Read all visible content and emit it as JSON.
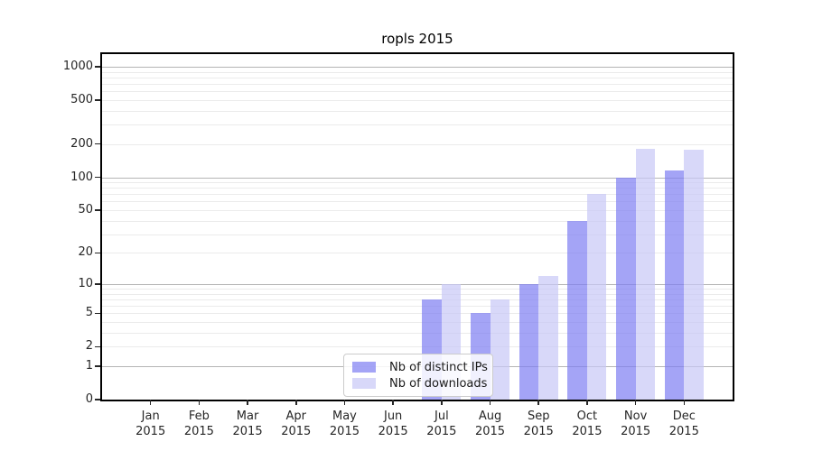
{
  "title": "ropls 2015",
  "colors": {
    "ips_bar": "rgba(125,125,242,0.7)",
    "downloads_bar": "rgba(200,200,246,0.7)",
    "grid_major": "#b4b4b4",
    "grid_minor": "#ebebeb",
    "axis": "#000000",
    "text": "#262626"
  },
  "legend": {
    "items": [
      {
        "label": "Nb of distinct IPs"
      },
      {
        "label": "Nb of downloads"
      }
    ]
  },
  "chart_data": {
    "type": "bar",
    "title": "ropls 2015",
    "categories": [
      "Jan 2015",
      "Feb 2015",
      "Mar 2015",
      "Apr 2015",
      "May 2015",
      "Jun 2015",
      "Jul 2015",
      "Aug 2015",
      "Sep 2015",
      "Oct 2015",
      "Nov 2015",
      "Dec 2015"
    ],
    "series": [
      {
        "name": "Nb of distinct IPs",
        "color": "rgba(125,125,242,0.7)",
        "values": [
          0,
          0,
          0,
          0,
          0,
          0,
          7,
          5,
          10,
          40,
          100,
          115
        ]
      },
      {
        "name": "Nb of downloads",
        "color": "rgba(200,200,246,0.7)",
        "values": [
          0,
          0,
          0,
          0,
          0,
          0,
          10,
          7,
          12,
          70,
          180,
          178
        ]
      }
    ],
    "xlabel": "",
    "ylabel": "",
    "yscale": "log1p",
    "yticks": [
      0,
      1,
      2,
      5,
      10,
      20,
      50,
      100,
      200,
      500,
      1000
    ],
    "ylim": [
      0,
      1300
    ],
    "grid": true,
    "grid_major_at": [
      1,
      10,
      100,
      1000
    ],
    "legend_position": "lower center"
  }
}
